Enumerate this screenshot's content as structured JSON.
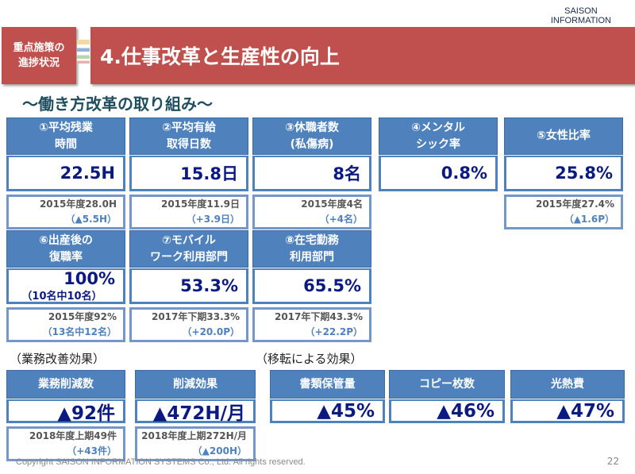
{
  "logo": {
    "line1": "SAISON",
    "line2": "INFORMATION"
  },
  "tag": "重点施策の\n進捗状況",
  "title": "4.仕事改革と生産性の向上",
  "subtitle": "～働き方改革の取り組み～",
  "cards": [
    {
      "header": "①平均残業\n時間",
      "value": "22.5H",
      "prev": "2015年度28.0H",
      "diff": "（▲5.5H）"
    },
    {
      "header": "②平均有給\n取得日数",
      "value": "15.8日",
      "prev": "2015年度11.9日",
      "diff": "（+3.9日）"
    },
    {
      "header": "③休職者数\n(私傷病)",
      "value": "8名",
      "prev": "2015年度4名",
      "diff": "（+4名）"
    },
    {
      "header": "④メンタル\nシック率",
      "value": "0.8%"
    },
    {
      "header": "⑤女性比率",
      "value": "25.8%",
      "prev": "2015年度27.4%",
      "diff": "（▲1.6P）"
    },
    {
      "header": "⑥出産後の\n復職率",
      "value": "100%",
      "note": "（10名中10名）",
      "prev": "2015年度92%",
      "diff": "（13名中12名）"
    },
    {
      "header": "⑦モバイル\nワーク利用部門",
      "value": "53.3%",
      "prev": "2017年下期33.3%",
      "diff": "（+20.0P）"
    },
    {
      "header": "⑧在宅勤務\n利用部門",
      "value": "65.5%",
      "prev": "2017年下期43.3%",
      "diff": "（+22.2P）"
    }
  ],
  "sections": {
    "business": "（業務改善効果）",
    "relocation": "（移転による効果）"
  },
  "effects": [
    {
      "header": "業務削減数",
      "value": "▲92件",
      "prev": "2018年度上期49件",
      "diff": "（+43件）"
    },
    {
      "header": "削減効果",
      "value": "▲472H/月",
      "prev": "2018年度上期272H/月",
      "diff": "（▲200H）"
    },
    {
      "header": "書類保管量",
      "value": "▲45%"
    },
    {
      "header": "コピー枚数",
      "value": "▲46%"
    },
    {
      "header": "光熱費",
      "value": "▲47%"
    }
  ],
  "footer": {
    "copyright": "Copyright  SAISON INFORMATION SYSTEMS Co., Ltd.  All rights reserved.",
    "page": "22"
  }
}
